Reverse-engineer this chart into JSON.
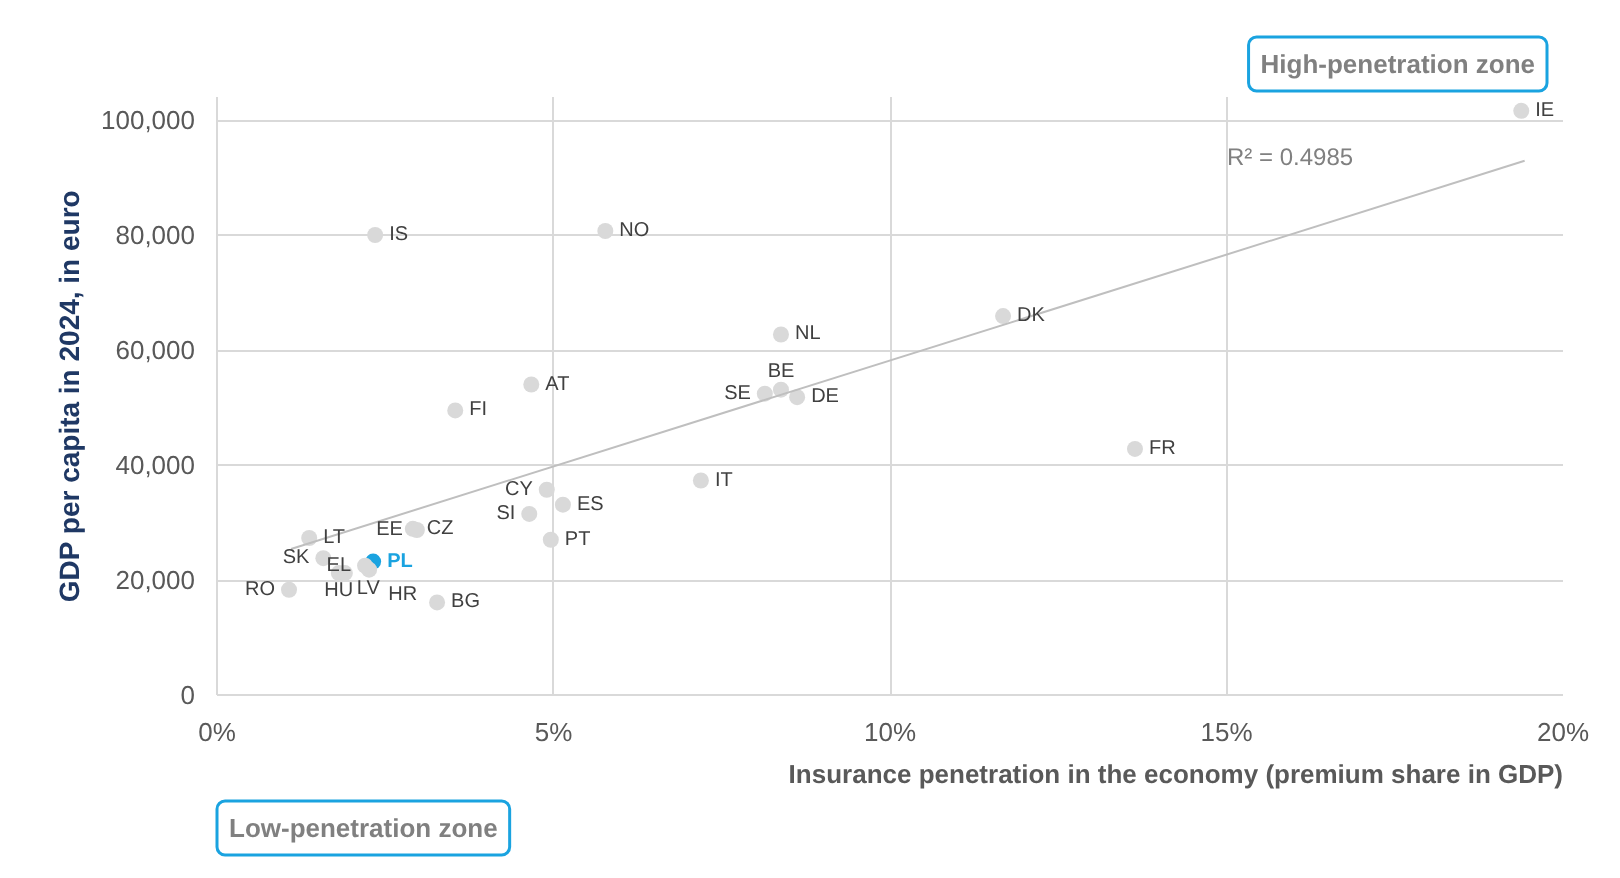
{
  "chart_data": {
    "type": "scatter",
    "xlabel": "Insurance penetration in the economy (premium share in GDP)",
    "ylabel": "GDP per capita in 2024, in euro",
    "annotations": [
      "High-penetration zone",
      "Low-penetration zone",
      "R² = 0.4985"
    ],
    "xlim": [
      0,
      20
    ],
    "ylim": [
      0,
      104000
    ],
    "xticks": [
      {
        "value": 0,
        "label": "0%"
      },
      {
        "value": 5,
        "label": "5%"
      },
      {
        "value": 10,
        "label": "10%"
      },
      {
        "value": 15,
        "label": "15%"
      },
      {
        "value": 20,
        "label": "20%"
      }
    ],
    "yticks": [
      0,
      {
        "value": 20000,
        "label": "20,000"
      },
      {
        "value": 40000,
        "label": "40,000"
      },
      {
        "value": 60000,
        "label": "60,000"
      },
      {
        "value": 80000,
        "label": "80,000"
      },
      {
        "value": 100000,
        "label": "100,000"
      }
    ],
    "grid": true,
    "marker": "circle",
    "series": [
      {
        "x": [
          2.35,
          5.77,
          8.38,
          4.67,
          3.54,
          8.14,
          8.38,
          8.62,
          4.9,
          7.19,
          4.64,
          5.14,
          2.91,
          2.97,
          4.96,
          1.37,
          1.58,
          2.32,
          1.81,
          1.9,
          2.26,
          2.2,
          1.07,
          3.27,
          11.68,
          13.64,
          19.38
        ],
        "values": [
          80000,
          80700,
          62700,
          54000,
          49500,
          52400,
          53100,
          51800,
          35700,
          37300,
          31500,
          33100,
          28900,
          28700,
          27000,
          27300,
          23800,
          23200,
          21200,
          21200,
          21800,
          22500,
          18300,
          16100,
          65900,
          42800,
          101600
        ],
        "value_labels": [
          "IS",
          "NO",
          "NL",
          "AT",
          "FI",
          "SE",
          "BE",
          "DE",
          "CY",
          "IT",
          "SI",
          "ES",
          "CZ",
          "EE",
          "PT",
          "LT",
          "SK",
          "PL",
          "HU",
          "LV",
          "HR",
          "EL",
          "RO",
          "BG",
          "DK",
          "FR",
          "IE"
        ],
        "colors": [
          "#d9d9d9",
          "#d9d9d9",
          "#d9d9d9",
          "#d9d9d9",
          "#d9d9d9",
          "#d9d9d9",
          "#d9d9d9",
          "#d9d9d9",
          "#d9d9d9",
          "#d9d9d9",
          "#d9d9d9",
          "#d9d9d9",
          "#d9d9d9",
          "#d9d9d9",
          "#d9d9d9",
          "#d9d9d9",
          "#d9d9d9",
          "#1aa3e0",
          "#d9d9d9",
          "#d9d9d9",
          "#d9d9d9",
          "#d9d9d9",
          "#d9d9d9",
          "#d9d9d9",
          "#d9d9d9",
          "#d9d9d9",
          "#d9d9d9"
        ]
      },
      {
        "type": "line",
        "marker": "none",
        "x": [
          1.1,
          19.43
        ],
        "values": [
          25400,
          92900
        ],
        "color": "#bfbfbf"
      }
    ]
  }
}
